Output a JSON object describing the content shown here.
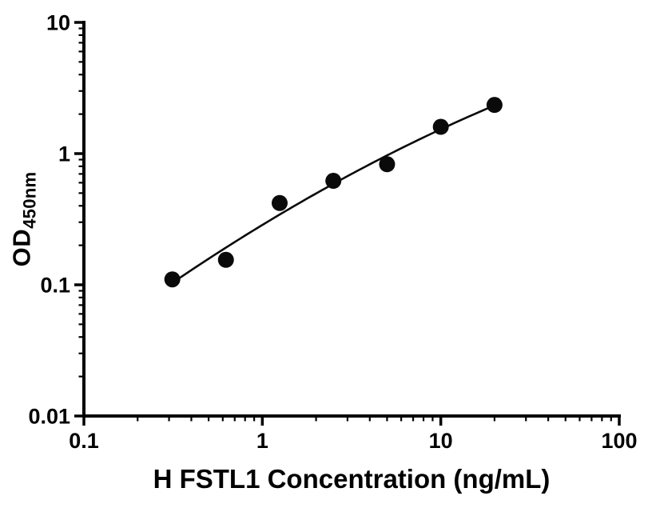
{
  "chart_data": {
    "type": "scatter",
    "title": "",
    "xlabel": "H FSTL1 Concentration (ng/mL)",
    "ylabel": "OD",
    "ylabel_subscript": "450nm",
    "x_scale": "log",
    "y_scale": "log",
    "xlim": [
      0.1,
      100
    ],
    "ylim": [
      0.01,
      10
    ],
    "x_ticks": [
      0.1,
      1,
      10,
      100
    ],
    "x_tick_labels": [
      "0.1",
      "1",
      "10",
      "100"
    ],
    "y_ticks": [
      0.01,
      0.1,
      1,
      10
    ],
    "y_tick_labels": [
      "0.01",
      "0.1",
      "1",
      "10"
    ],
    "grid": false,
    "legend": "none",
    "marker_color": "#0a0a0a",
    "curve_color": "#0a0a0a",
    "axis_color": "#000000",
    "points": [
      {
        "x": 0.313,
        "y": 0.11
      },
      {
        "x": 0.625,
        "y": 0.155
      },
      {
        "x": 1.25,
        "y": 0.42
      },
      {
        "x": 2.5,
        "y": 0.62
      },
      {
        "x": 5,
        "y": 0.83
      },
      {
        "x": 10,
        "y": 1.6
      },
      {
        "x": 20,
        "y": 2.35
      }
    ]
  }
}
